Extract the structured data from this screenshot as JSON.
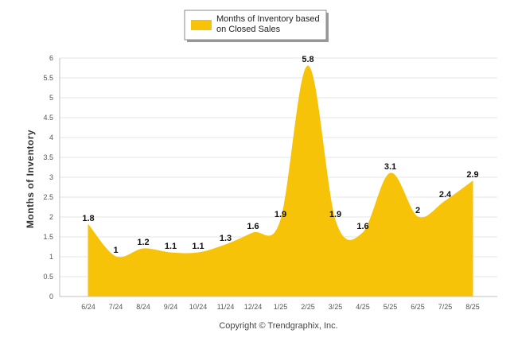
{
  "chart_data": {
    "type": "area",
    "title": "",
    "xlabel": "",
    "ylabel": "Months of Inventory",
    "categories": [
      "6/24",
      "7/24",
      "8/24",
      "9/24",
      "10/24",
      "11/24",
      "12/24",
      "1/25",
      "2/25",
      "3/25",
      "4/25",
      "5/25",
      "6/25",
      "7/25",
      "8/25"
    ],
    "series": [
      {
        "name": "Months of Inventory based on Closed Sales",
        "values": [
          1.8,
          1,
          1.2,
          1.1,
          1.1,
          1.3,
          1.6,
          1.9,
          5.8,
          1.9,
          1.6,
          3.1,
          2,
          2.4,
          2.9
        ],
        "value_labels": [
          "1.8",
          "1",
          "1.2",
          "1.1",
          "1.1",
          "1.3",
          "1.6",
          "1.9",
          "5.8",
          "1.9",
          "1.6",
          "3.1",
          "2",
          "2.4",
          "2.9"
        ],
        "color": "#F7C308"
      }
    ],
    "ylim": [
      0,
      6
    ],
    "yticks": [
      "0",
      "0.5",
      "1",
      "1.5",
      "2",
      "2.5",
      "3",
      "3.5",
      "4",
      "4.5",
      "5",
      "5.5",
      "6"
    ],
    "grid": true,
    "legend_position": "top-center"
  },
  "legend": {
    "line1": "Months of Inventory based",
    "line2": "on Closed Sales"
  },
  "credit": "Copyright © Trendgraphix, Inc."
}
